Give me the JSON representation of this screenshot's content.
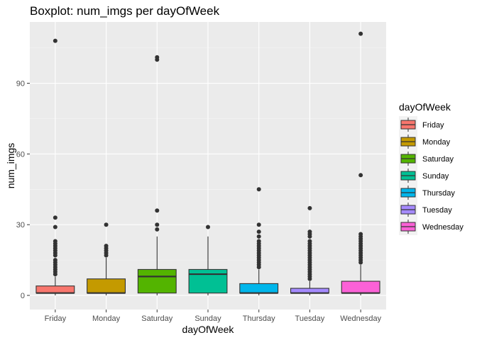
{
  "chart_data": {
    "type": "boxplot",
    "title": "Boxplot: num_imgs per dayOfWeek",
    "xlabel": "dayOfWeek",
    "ylabel": "num_imgs",
    "ylim": [
      -6,
      116
    ],
    "yticks": [
      0,
      30,
      60,
      90
    ],
    "grid": true,
    "legend": {
      "title": "dayOfWeek",
      "position": "right"
    },
    "categories": [
      "Friday",
      "Monday",
      "Saturday",
      "Sunday",
      "Thursday",
      "Tuesday",
      "Wednesday"
    ],
    "colors": [
      "#F8766D",
      "#C49A00",
      "#53B400",
      "#00C094",
      "#00B6EB",
      "#A58AFF",
      "#FB61D7"
    ],
    "boxes": [
      {
        "category": "Friday",
        "min": 0,
        "q1": 1,
        "median": 1,
        "q3": 4,
        "max": 8,
        "outliers": [
          9,
          10,
          11,
          12,
          13,
          14,
          15,
          17,
          18,
          19,
          20,
          21,
          22,
          23,
          29,
          33,
          108
        ]
      },
      {
        "category": "Monday",
        "min": 0,
        "q1": 1,
        "median": 1,
        "q3": 7,
        "max": 16,
        "outliers": [
          17,
          18,
          19,
          20,
          21,
          30
        ]
      },
      {
        "category": "Saturday",
        "min": 0,
        "q1": 1,
        "median": 8,
        "q3": 11,
        "max": 25,
        "outliers": [
          28,
          30,
          36,
          100,
          101
        ]
      },
      {
        "category": "Sunday",
        "min": 0,
        "q1": 1,
        "median": 9,
        "q3": 11,
        "max": 25,
        "outliers": [
          29
        ]
      },
      {
        "category": "Thursday",
        "min": 0,
        "q1": 1,
        "median": 1,
        "q3": 5,
        "max": 11,
        "outliers": [
          12,
          13,
          14,
          15,
          16,
          17,
          18,
          19,
          20,
          21,
          22,
          23,
          25,
          27,
          30,
          45
        ]
      },
      {
        "category": "Tuesday",
        "min": 0,
        "q1": 1,
        "median": 1,
        "q3": 3,
        "max": 6,
        "outliers": [
          7,
          8,
          9,
          10,
          11,
          12,
          13,
          14,
          15,
          16,
          17,
          18,
          19,
          20,
          21,
          22,
          23,
          25,
          26,
          27,
          37
        ]
      },
      {
        "category": "Wednesday",
        "min": 0,
        "q1": 1,
        "median": 1,
        "q3": 6,
        "max": 13,
        "outliers": [
          14,
          15,
          16,
          17,
          18,
          19,
          20,
          21,
          22,
          23,
          24,
          25,
          26,
          51,
          111
        ]
      }
    ]
  }
}
